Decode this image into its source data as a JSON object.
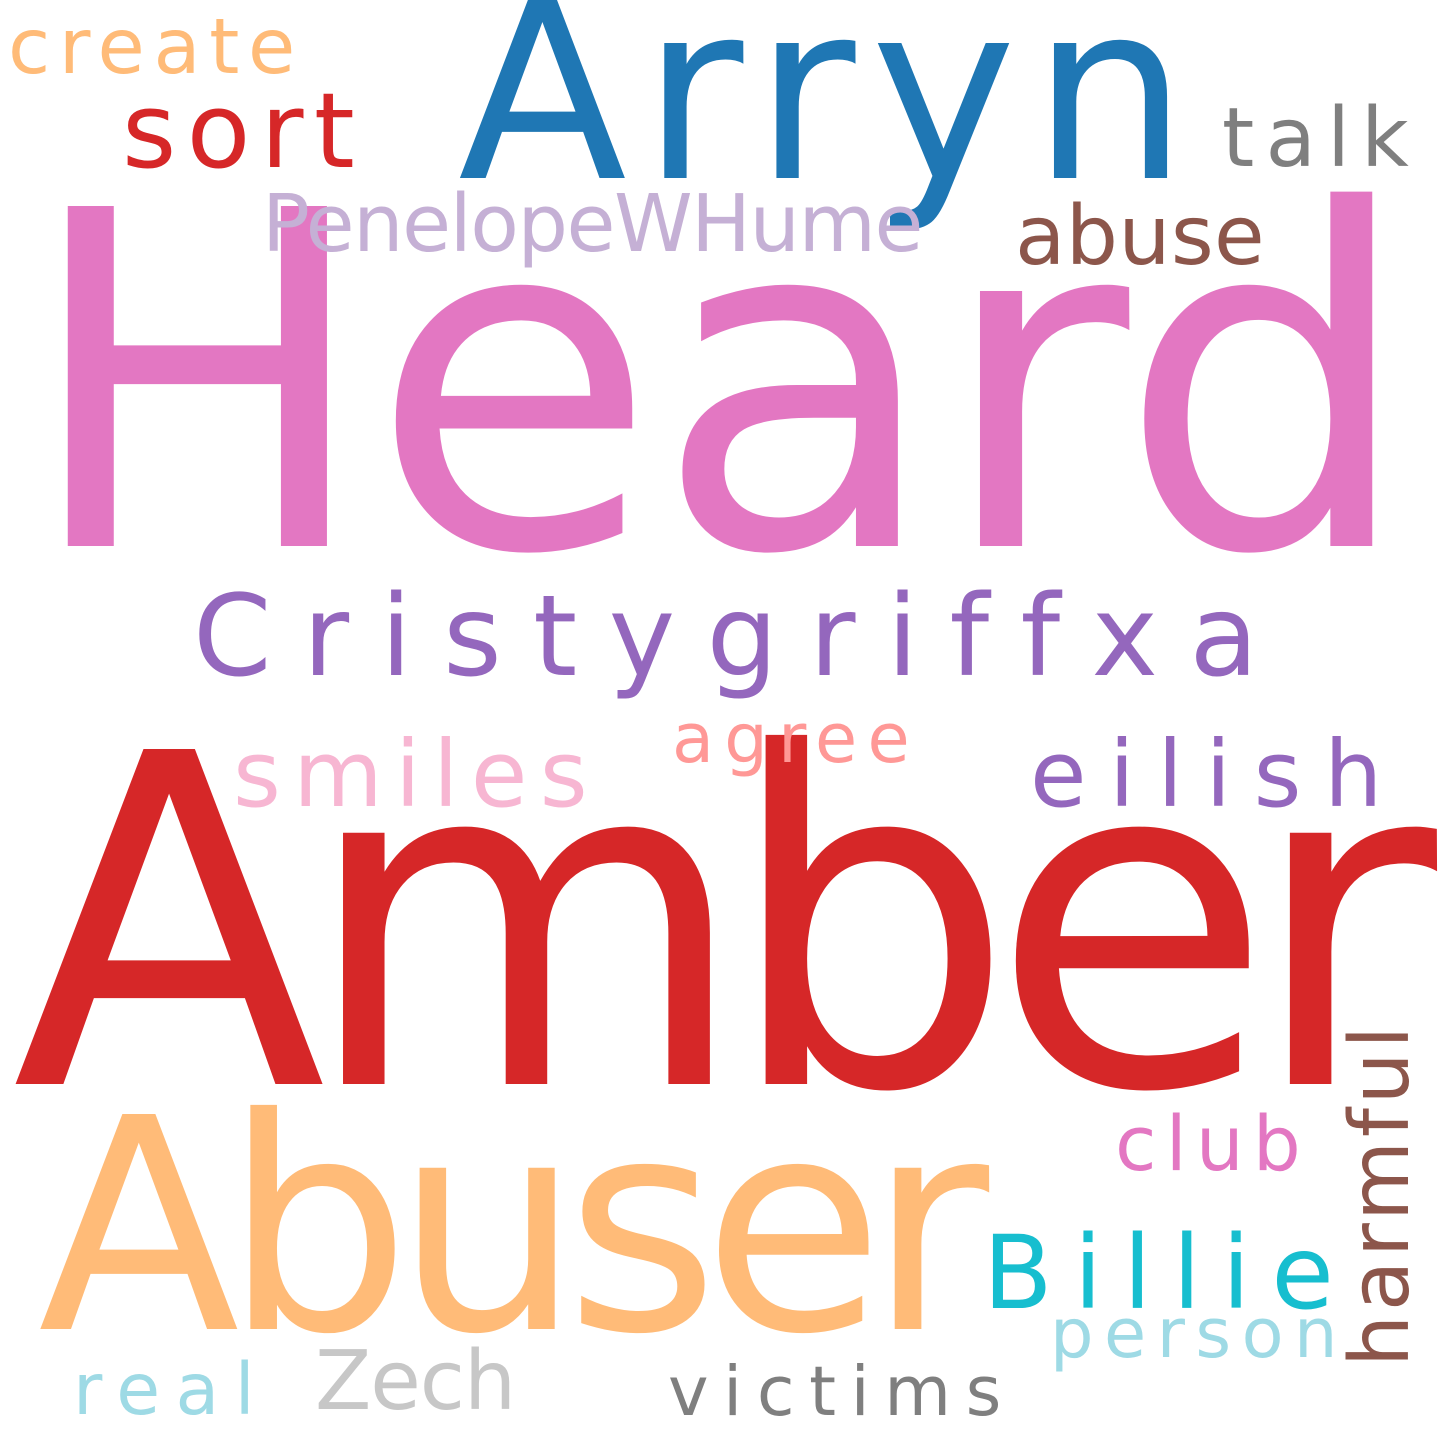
{
  "words": [
    {
      "text": "Heard",
      "color": "#e377c2"
    },
    {
      "text": "Amber",
      "color": "#d62728"
    },
    {
      "text": "Abuser",
      "color": "#ffbb78"
    },
    {
      "text": "Arryn",
      "color": "#1f77b4"
    },
    {
      "text": "Cristygriffxa",
      "color": "#9467bd"
    },
    {
      "text": "PenelopeWHume",
      "color": "#c5b0d5"
    },
    {
      "text": "eilish",
      "color": "#9467bd"
    },
    {
      "text": "smiles",
      "color": "#f7b6d2"
    },
    {
      "text": "agree",
      "color": "#ff9896"
    },
    {
      "text": "sort",
      "color": "#d62728"
    },
    {
      "text": "create",
      "color": "#ffbb78"
    },
    {
      "text": "talk",
      "color": "#7f7f7f"
    },
    {
      "text": "abuse",
      "color": "#8c564b"
    },
    {
      "text": "Billie",
      "color": "#17becf"
    },
    {
      "text": "club",
      "color": "#e377c2"
    },
    {
      "text": "harmful",
      "color": "#8c564b",
      "orientation": "vertical"
    },
    {
      "text": "person",
      "color": "#9edae5"
    },
    {
      "text": "victims",
      "color": "#7f7f7f"
    },
    {
      "text": "real",
      "color": "#9edae5"
    },
    {
      "text": "Zech",
      "color": "#c7c7c7"
    }
  ]
}
